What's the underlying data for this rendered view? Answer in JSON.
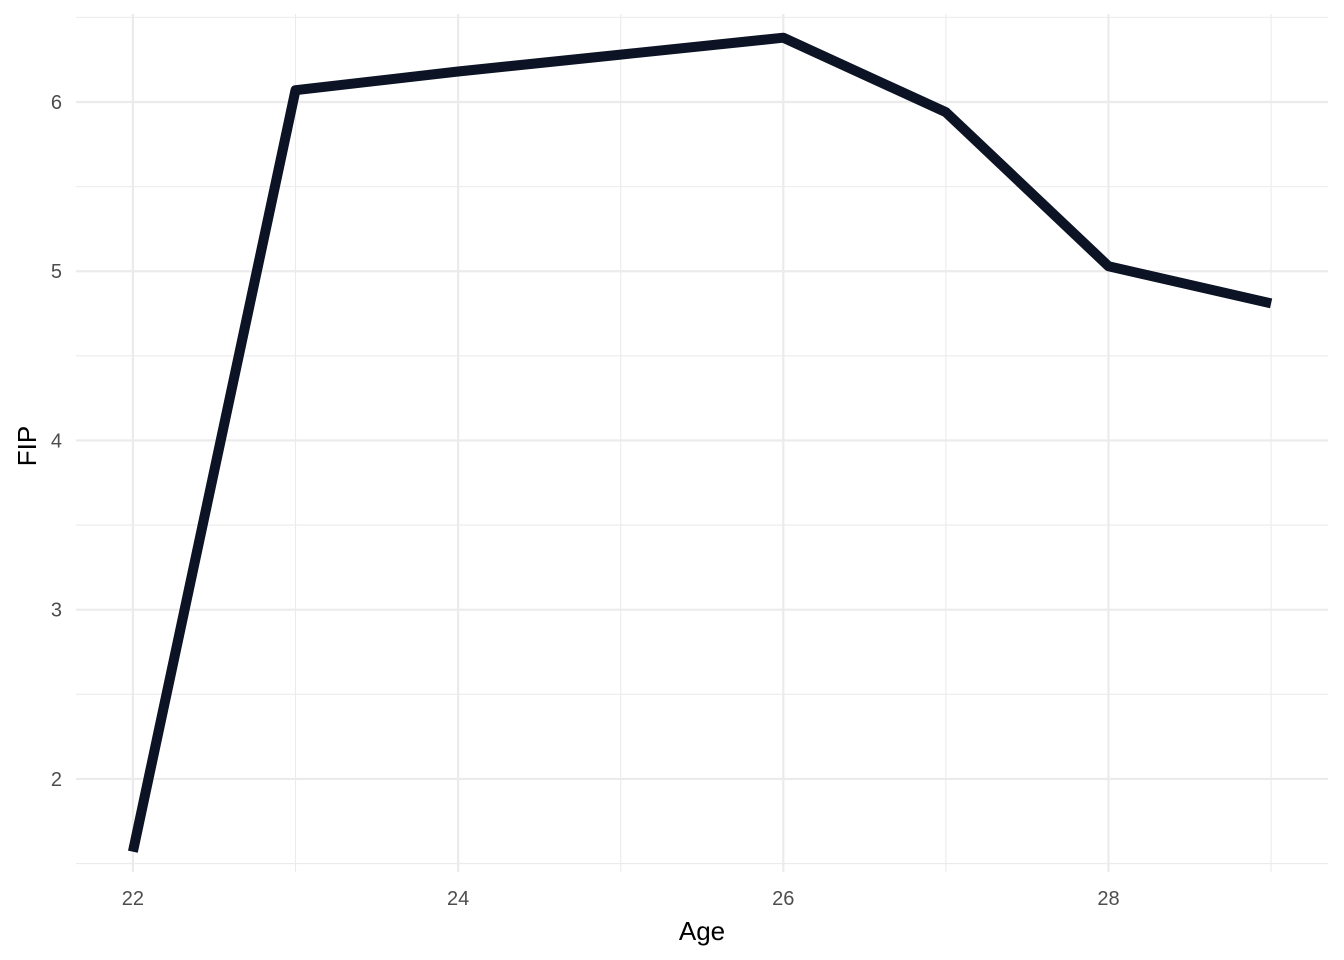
{
  "chart_data": {
    "type": "line",
    "title": "",
    "xlabel": "Age",
    "ylabel": "FIP",
    "x": [
      22,
      23,
      24,
      25,
      26,
      27,
      28,
      29
    ],
    "series": [
      {
        "values": [
          1.57,
          6.07,
          6.18,
          6.28,
          6.38,
          5.94,
          5.03,
          4.81
        ]
      }
    ],
    "xlim": [
      21.65,
      29.35
    ],
    "ylim": [
      1.45,
      6.52
    ],
    "x_ticks": [
      22,
      24,
      26,
      28
    ],
    "x_tick_labels": [
      "22",
      "24",
      "26",
      "28"
    ],
    "x_minor_ticks": [
      23,
      25,
      27,
      29
    ],
    "y_ticks": [
      2,
      3,
      4,
      5,
      6
    ],
    "y_tick_labels": [
      "2",
      "3",
      "4",
      "5",
      "6"
    ],
    "y_minor_ticks": [
      1.5,
      2.5,
      3.5,
      4.5,
      5.5,
      6.5
    ],
    "grid": true,
    "legend": "none",
    "line_color": "#0b1324"
  }
}
